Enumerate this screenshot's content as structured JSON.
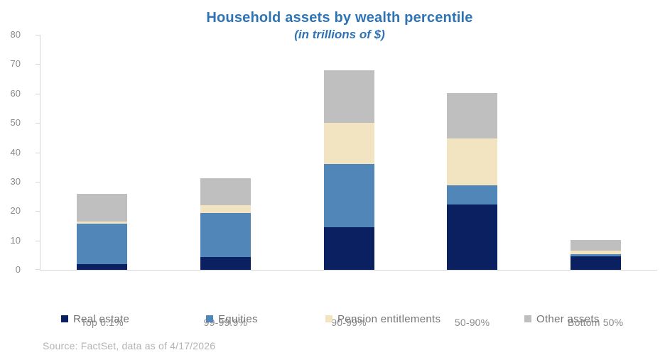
{
  "chart_data": {
    "type": "bar",
    "stacked": true,
    "title": "Household assets by wealth percentile",
    "subtitle": "(in trillions of $)",
    "categories": [
      "Top 0.1%",
      "99-99.9%",
      "90-99%",
      "50-90%",
      "Bottom 50%"
    ],
    "series": [
      {
        "name": "Real estate",
        "color": "#0a2060",
        "values": [
          1.9,
          4.4,
          14.5,
          22.3,
          4.7
        ]
      },
      {
        "name": "Equities",
        "color": "#5186b8",
        "values": [
          13.9,
          15.0,
          21.4,
          6.4,
          0.7
        ]
      },
      {
        "name": "Pension entitlements",
        "color": "#f2e3c1",
        "values": [
          0.6,
          2.6,
          14.1,
          16.1,
          1.2
        ]
      },
      {
        "name": "Other assets",
        "color": "#bfbfbf",
        "values": [
          9.4,
          9.1,
          18.0,
          15.4,
          3.5
        ]
      }
    ],
    "stack_totals": [
      25.8,
      31.1,
      68.0,
      60.2,
      10.1
    ],
    "ylim": [
      0,
      80
    ],
    "yticks": [
      0,
      10,
      20,
      30,
      40,
      50,
      60,
      70,
      80
    ],
    "grid": false,
    "legend_position": "bottom",
    "title_color": "#2e74b5",
    "axis_line_color": "#d6d6d6",
    "axis_label_color": "#8a8a8a"
  },
  "source": {
    "text": "Source: FactSet, data as of 4/17/2026"
  }
}
